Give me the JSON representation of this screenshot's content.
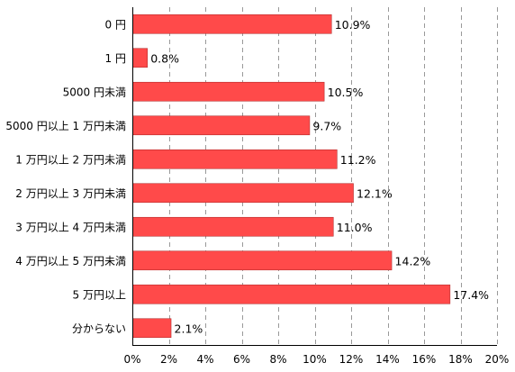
{
  "chart_data": {
    "type": "bar",
    "orientation": "horizontal",
    "categories": [
      "0 円",
      "1 円",
      "5000 円未満",
      "5000 円以上 1 万円未満",
      "1 万円以上 2 万円未満",
      "2 万円以上 3 万円未満",
      "3 万円以上 4 万円未満",
      "4 万円以上 5 万円未満",
      "5 万円以上",
      "分からない"
    ],
    "values": [
      10.9,
      0.8,
      10.5,
      9.7,
      11.2,
      12.1,
      11.0,
      14.2,
      17.4,
      2.1
    ],
    "value_labels": [
      "10.9%",
      "0.8%",
      "10.5%",
      "9.7%",
      "11.2%",
      "12.1%",
      "11.0%",
      "14.2%",
      "17.4%",
      "2.1%"
    ],
    "xlim": [
      0,
      20
    ],
    "xticks": [
      0,
      2,
      4,
      6,
      8,
      10,
      12,
      14,
      16,
      18,
      20
    ],
    "xtick_labels": [
      "0%",
      "2%",
      "4%",
      "6%",
      "8%",
      "10%",
      "12%",
      "14%",
      "16%",
      "18%",
      "20%"
    ],
    "grid": true,
    "grid_style": "dashed-vertical",
    "title": "",
    "xlabel": "",
    "ylabel": "",
    "colors": {
      "bar": "#ff4a4a",
      "bar_stroke": "#b33030",
      "grid": "#999999",
      "axis": "#000000"
    }
  }
}
